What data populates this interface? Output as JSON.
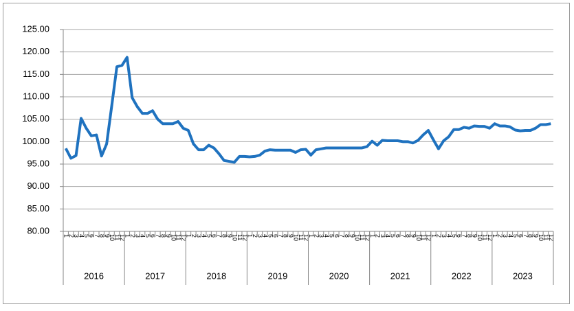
{
  "chart_data": {
    "type": "line",
    "categories": [
      "1",
      "2",
      "3",
      "4",
      "5",
      "6",
      "7",
      "8",
      "9",
      "10",
      "11",
      "12",
      "1",
      "2",
      "3",
      "4",
      "5",
      "6",
      "7",
      "8",
      "9",
      "10",
      "11",
      "12",
      "1",
      "2",
      "3",
      "4",
      "5",
      "6",
      "7",
      "8",
      "9",
      "10",
      "11",
      "12",
      "1",
      "2",
      "3",
      "4",
      "5",
      "6",
      "7",
      "8",
      "9",
      "10",
      "11",
      "12",
      "1",
      "2",
      "3",
      "4",
      "5",
      "6",
      "7",
      "8",
      "9",
      "10",
      "11",
      "12",
      "1",
      "2",
      "3",
      "4",
      "5",
      "6",
      "7",
      "8",
      "9",
      "10",
      "11",
      "12",
      "1",
      "2",
      "3",
      "4",
      "5",
      "6",
      "7",
      "8",
      "9",
      "10",
      "11",
      "12",
      "1",
      "2",
      "3",
      "4",
      "5",
      "6",
      "7",
      "8",
      "9",
      "10",
      "11",
      "12"
    ],
    "years": [
      "2016",
      "2017",
      "2018",
      "2019",
      "2020",
      "2021",
      "2022",
      "2023"
    ],
    "series": [
      {
        "color": "#1f72bf",
        "values": [
          98.5,
          96.3,
          96.9,
          105.2,
          103.0,
          101.3,
          101.5,
          96.8,
          99.5,
          108.0,
          116.7,
          117.0,
          118.8,
          109.8,
          107.8,
          106.3,
          106.3,
          106.9,
          105.0,
          104.0,
          104.0,
          104.0,
          104.5,
          103.0,
          102.5,
          99.5,
          98.2,
          98.2,
          99.2,
          98.6,
          97.3,
          95.8,
          95.6,
          95.4,
          96.7,
          96.7,
          96.6,
          96.7,
          97.0,
          97.9,
          98.2,
          98.1,
          98.1,
          98.1,
          98.1,
          97.6,
          98.2,
          98.3,
          97.0,
          98.2,
          98.4,
          98.6,
          98.6,
          98.6,
          98.6,
          98.6,
          98.6,
          98.6,
          98.6,
          98.9,
          100.1,
          99.2,
          100.3,
          100.2,
          100.2,
          100.2,
          100.0,
          100.0,
          99.7,
          100.3,
          101.5,
          102.5,
          100.4,
          98.4,
          100.2,
          101.1,
          102.7,
          102.7,
          103.2,
          103.0,
          103.5,
          103.4,
          103.4,
          103.0,
          104.0,
          103.5,
          103.5,
          103.3,
          102.6,
          102.4,
          102.5,
          102.5,
          103.0,
          103.8,
          103.8,
          104.0
        ]
      }
    ],
    "ylim": [
      80,
      125
    ],
    "yticks": [
      {
        "value": 80,
        "label": "80.00"
      },
      {
        "value": 85,
        "label": "85.00"
      },
      {
        "value": 90,
        "label": "90.00"
      },
      {
        "value": 95,
        "label": "95.00"
      },
      {
        "value": 100,
        "label": "100.00"
      },
      {
        "value": 105,
        "label": "105.00"
      },
      {
        "value": 110,
        "label": "110.00"
      },
      {
        "value": 115,
        "label": "115.00"
      },
      {
        "value": 120,
        "label": "120.00"
      },
      {
        "value": 125,
        "label": "125.00"
      }
    ],
    "grid": true
  }
}
